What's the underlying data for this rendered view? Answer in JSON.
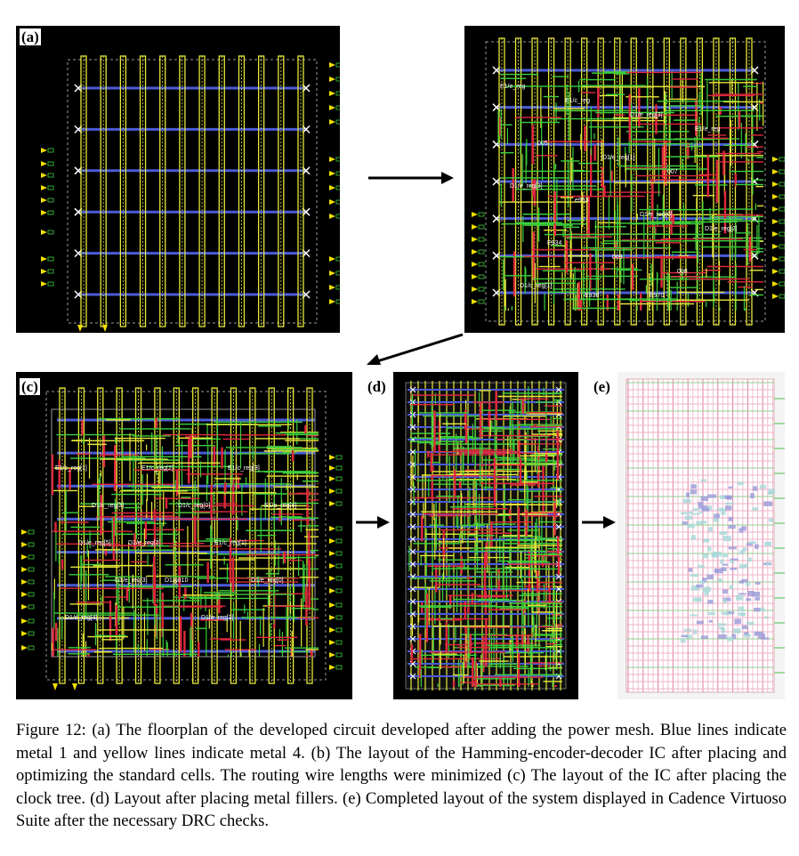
{
  "figure": {
    "panels": [
      {
        "id": "a",
        "label": "(a)"
      },
      {
        "id": "b",
        "label": ""
      },
      {
        "id": "c",
        "label": "(c)"
      },
      {
        "id": "d",
        "label": "(d)"
      },
      {
        "id": "e",
        "label": "(e)"
      }
    ],
    "layout_labels_b": [
      "E1/e_reg",
      "E1/c_reg",
      "D1/e_reg[3]",
      "E1/e_reg",
      "005",
      "D1/e_reg[1]",
      "007",
      "D1/e_reg[3]",
      "e953",
      "D1/e_reg[0]",
      "D1/e_reg[2]",
      "E934",
      "009",
      "008",
      "D1/c_reg[1]",
      "E938",
      "E970"
    ],
    "layout_labels_c": [
      "E1/c_reg[1]",
      "E1/c_reg[2]",
      "E1/c_reg[3]",
      "D1/c_reg[3]",
      "D1/c_reg[0]",
      "E1/e_reg[4]",
      "D1/e_reg[2]",
      "E1/c_reg[1]",
      "D1/e_reg[5]",
      "D1/g810",
      "D1/e_reg[0]",
      "D1/e_reg[3]",
      "D1/e_reg[2]",
      "D1/e_reg[4]"
    ],
    "colors": {
      "background": "#000000",
      "metal1": "#4a5bd8",
      "metal4": "#e8e83a",
      "routing_green": "#3ccf3c",
      "routing_red": "#e0283c",
      "via": "#ffffff",
      "pin": "#f0e000"
    }
  },
  "caption": {
    "text": "Figure 12: (a) The floorplan of the developed circuit developed after adding the power mesh. Blue lines indicate metal 1 and yellow lines indicate metal 4. (b) The layout of the Hamming-encoder-decoder IC after placing and optimizing the standard cells. The routing wire lengths were minimized (c) The layout of the IC after placing the clock tree. (d) Layout after placing metal fillers. (e) Completed layout of the system displayed in Cadence Virtuoso Suite after the necessary DRC checks."
  }
}
